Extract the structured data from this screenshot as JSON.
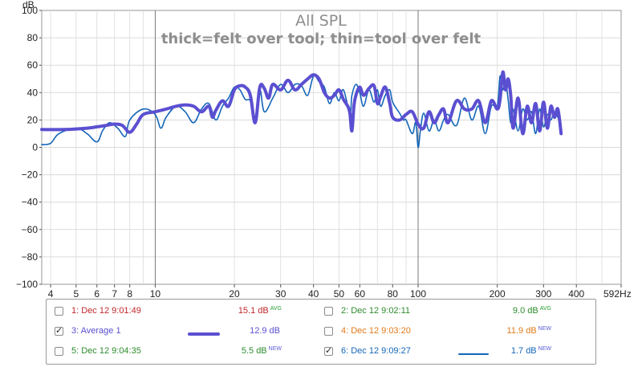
{
  "chart_data": {
    "type": "line",
    "title": "All SPL",
    "subtitle": "thick=felt over tool; thin=tool over felt",
    "ylabel": "dB",
    "xlabel": "",
    "x_scale": "log",
    "xlim": [
      3.7,
      592
    ],
    "ylim": [
      -100,
      100
    ],
    "y_ticks": [
      100,
      80,
      60,
      40,
      20,
      0,
      -20,
      -40,
      -60,
      -80,
      -100
    ],
    "y_tick_labels": [
      "100",
      "80",
      "60",
      "40",
      "20",
      "0",
      "−20",
      "−40",
      "−60",
      "−80",
      "−100"
    ],
    "x_ticks": [
      4,
      5,
      6,
      7,
      8,
      10,
      20,
      30,
      40,
      50,
      60,
      80,
      100,
      200,
      300,
      400,
      592
    ],
    "x_tick_labels": [
      "4",
      "5",
      "6",
      "7",
      "8",
      "10",
      "20",
      "30",
      "40",
      "50",
      "60",
      "80",
      "100",
      "200",
      "300",
      "400",
      "592Hz"
    ],
    "grid": true,
    "series": [
      {
        "name": "3: Average 1",
        "color": "#5b4fd1",
        "style": "thick",
        "x": [
          3.7,
          4.5,
          5.5,
          6,
          6.5,
          7,
          7.5,
          8,
          8.5,
          9,
          10,
          11,
          12,
          13,
          14,
          15,
          16,
          16.5,
          17,
          18,
          19,
          20,
          21,
          22,
          23,
          24,
          25,
          26,
          27,
          28,
          30,
          32,
          34,
          36,
          38,
          40,
          42,
          44,
          46,
          48,
          50,
          52,
          54,
          55,
          56,
          57,
          58,
          60,
          62,
          65,
          68,
          70,
          72,
          75,
          78,
          80,
          85,
          90,
          95,
          100,
          105,
          110,
          115,
          120,
          125,
          130,
          140,
          150,
          160,
          170,
          180,
          190,
          200,
          205,
          210,
          215,
          220,
          225,
          230,
          240,
          250,
          260,
          270,
          280,
          290,
          300,
          310,
          320,
          330,
          340,
          350
        ],
        "values": [
          13,
          13,
          14,
          15,
          16,
          17,
          16,
          11,
          17,
          24,
          26,
          28,
          30,
          31,
          30,
          26,
          30,
          22,
          27,
          34,
          30,
          42,
          45,
          44,
          38,
          18,
          44,
          43,
          36,
          46,
          42,
          49,
          42,
          46,
          50,
          53,
          50,
          40,
          36,
          38,
          42,
          35,
          30,
          25,
          12,
          30,
          38,
          44,
          38,
          43,
          45,
          32,
          37,
          44,
          32,
          22,
          20,
          24,
          26,
          17,
          14,
          26,
          18,
          24,
          28,
          18,
          34,
          28,
          28,
          34,
          18,
          34,
          28,
          35,
          55,
          42,
          50,
          38,
          14,
          36,
          10,
          30,
          18,
          32,
          12,
          33,
          14,
          30,
          22,
          28,
          10
        ]
      },
      {
        "name": "6: Dec 12 9:09:27",
        "color": "#1466b8",
        "style": "thin",
        "x": [
          3.7,
          4,
          4.3,
          5,
          5.5,
          6,
          6.3,
          6.7,
          7.2,
          7.7,
          8,
          9,
          10,
          10.5,
          11,
          12,
          13,
          14,
          15,
          16,
          17,
          18,
          19,
          20,
          21,
          22,
          23,
          24,
          25,
          26,
          28,
          30,
          32,
          34,
          36,
          38,
          40,
          42,
          44,
          46,
          48,
          50,
          52,
          55,
          56,
          58,
          60,
          62,
          65,
          68,
          70,
          72,
          75,
          78,
          80,
          85,
          88,
          90,
          95,
          98,
          100,
          102,
          105,
          110,
          115,
          120,
          125,
          130,
          140,
          150,
          160,
          170,
          180,
          190,
          200,
          205,
          210,
          215,
          220,
          225,
          230,
          240,
          250,
          260,
          270,
          280,
          290,
          300,
          310,
          320,
          330,
          340,
          350
        ],
        "values": [
          2,
          3,
          10,
          14,
          10,
          4,
          12,
          18,
          14,
          8,
          20,
          28,
          24,
          14,
          22,
          30,
          26,
          18,
          28,
          32,
          20,
          30,
          36,
          44,
          42,
          35,
          34,
          22,
          42,
          26,
          36,
          46,
          40,
          46,
          45,
          38,
          52,
          48,
          44,
          32,
          40,
          34,
          42,
          25,
          38,
          46,
          40,
          30,
          42,
          33,
          42,
          30,
          38,
          42,
          33,
          25,
          20,
          20,
          10,
          18,
          0,
          12,
          25,
          12,
          20,
          12,
          20,
          24,
          16,
          36,
          20,
          30,
          10,
          30,
          30,
          52,
          42,
          48,
          35,
          18,
          28,
          12,
          28,
          20,
          26,
          10,
          28,
          15,
          24,
          20,
          26,
          22,
          16
        ]
      }
    ]
  },
  "legend": {
    "items": [
      {
        "id": "1",
        "label": "1: Dec 12 9:01:49",
        "value": "15.1 dB",
        "tag": "AVG",
        "checked": false,
        "color": "#c0262b",
        "tag_color": "#2aa035",
        "line": null
      },
      {
        "id": "2",
        "label": "2: Dec 12 9:02:11",
        "value": "9.0 dB",
        "tag": "AVG",
        "checked": false,
        "color": "#2e8b2e",
        "tag_color": "#2aa035",
        "line": null
      },
      {
        "id": "3",
        "label": "3: Average 1",
        "value": "12.9 dB",
        "tag": "",
        "checked": true,
        "color": "#5b4fd1",
        "tag_color": "#5b4fd1",
        "line": "thick"
      },
      {
        "id": "4",
        "label": "4: Dec 12 9:03:20",
        "value": "11.9 dB",
        "tag": "NEW",
        "checked": false,
        "color": "#e07a1a",
        "tag_color": "#5b5bd6",
        "line": null
      },
      {
        "id": "5",
        "label": "5: Dec 12 9:04:35",
        "value": "5.5 dB",
        "tag": "NEW",
        "checked": false,
        "color": "#2e8b2e",
        "tag_color": "#5b5bd6",
        "line": null
      },
      {
        "id": "6",
        "label": "6: Dec 12 9:09:27",
        "value": "1.7 dB",
        "tag": "NEW",
        "checked": true,
        "color": "#1466b8",
        "tag_color": "#5b5bd6",
        "line": "thin"
      }
    ]
  },
  "colors": {
    "plot_border": "#a8a8a8",
    "grid": "#dadada",
    "decade_line": "#7a7a7a",
    "title": "#8e8e8e"
  }
}
